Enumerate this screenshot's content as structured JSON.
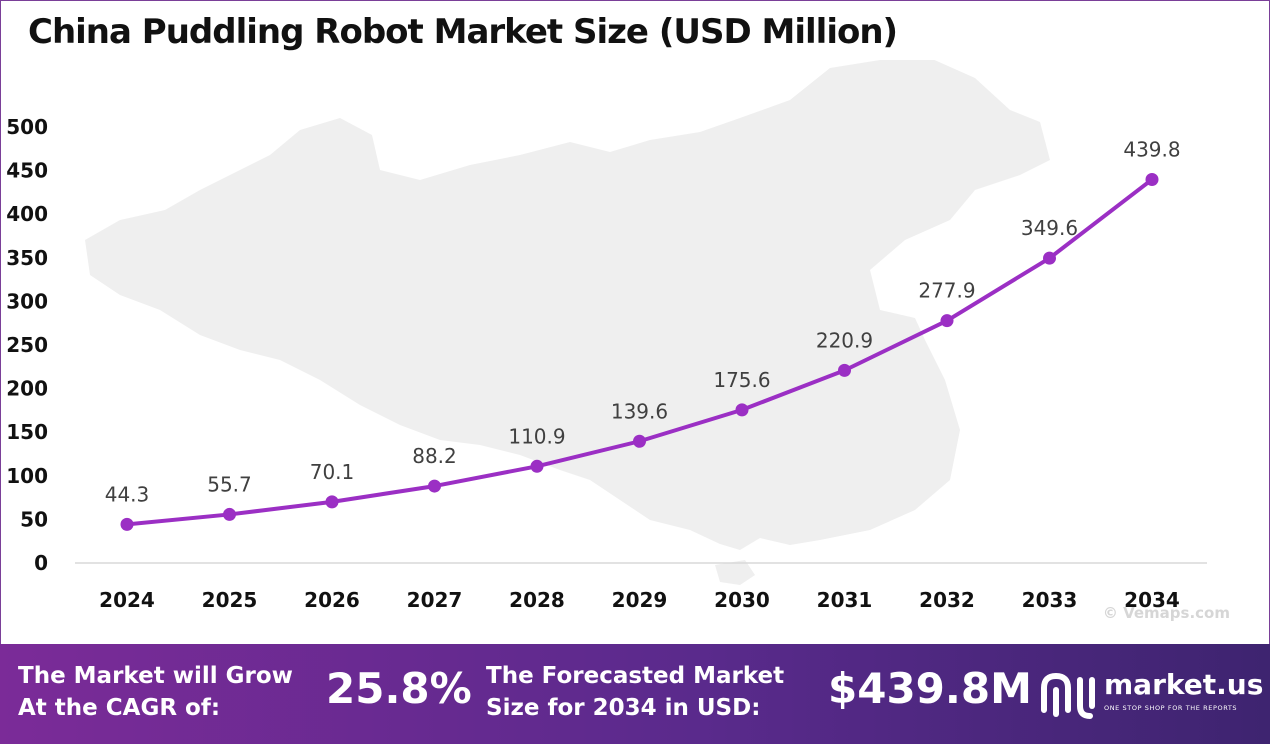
{
  "title": "China Puddling Robot Market Size (USD Million)",
  "chart_data": {
    "type": "line",
    "title": "China Puddling Robot Market Size (USD Million)",
    "xlabel": "",
    "ylabel": "",
    "categories": [
      "2024",
      "2025",
      "2026",
      "2027",
      "2028",
      "2029",
      "2030",
      "2031",
      "2032",
      "2033",
      "2034"
    ],
    "values": [
      44.3,
      55.7,
      70.1,
      88.2,
      110.9,
      139.6,
      175.6,
      220.9,
      277.9,
      349.6,
      439.8
    ],
    "data_labels": [
      "44.3",
      "55.7",
      "70.1",
      "88.2",
      "110.9",
      "139.6",
      "175.6",
      "220.9",
      "277.9",
      "349.6",
      "439.8"
    ],
    "ylim": [
      0,
      500
    ],
    "yticks": [
      0,
      50,
      100,
      150,
      200,
      250,
      300,
      350,
      400,
      450,
      500
    ],
    "grid": false,
    "legend": "none",
    "line_color": "#9b2fc4"
  },
  "watermark": "© Vemaps.com",
  "banner": {
    "cagr_label_line1": "The Market will Grow",
    "cagr_label_line2": "At the CAGR of:",
    "cagr_value": "25.8%",
    "forecast_label_line1": "The Forecasted Market",
    "forecast_label_line2": "Size for 2034 in USD:",
    "forecast_value": "$439.8M",
    "brand_name": "market.us",
    "brand_tagline": "ONE STOP SHOP FOR THE REPORTS"
  },
  "colors": {
    "banner_start": "#7b2b98",
    "banner_end": "#3e2470",
    "line": "#9b2fc4",
    "map": "#efefef"
  }
}
